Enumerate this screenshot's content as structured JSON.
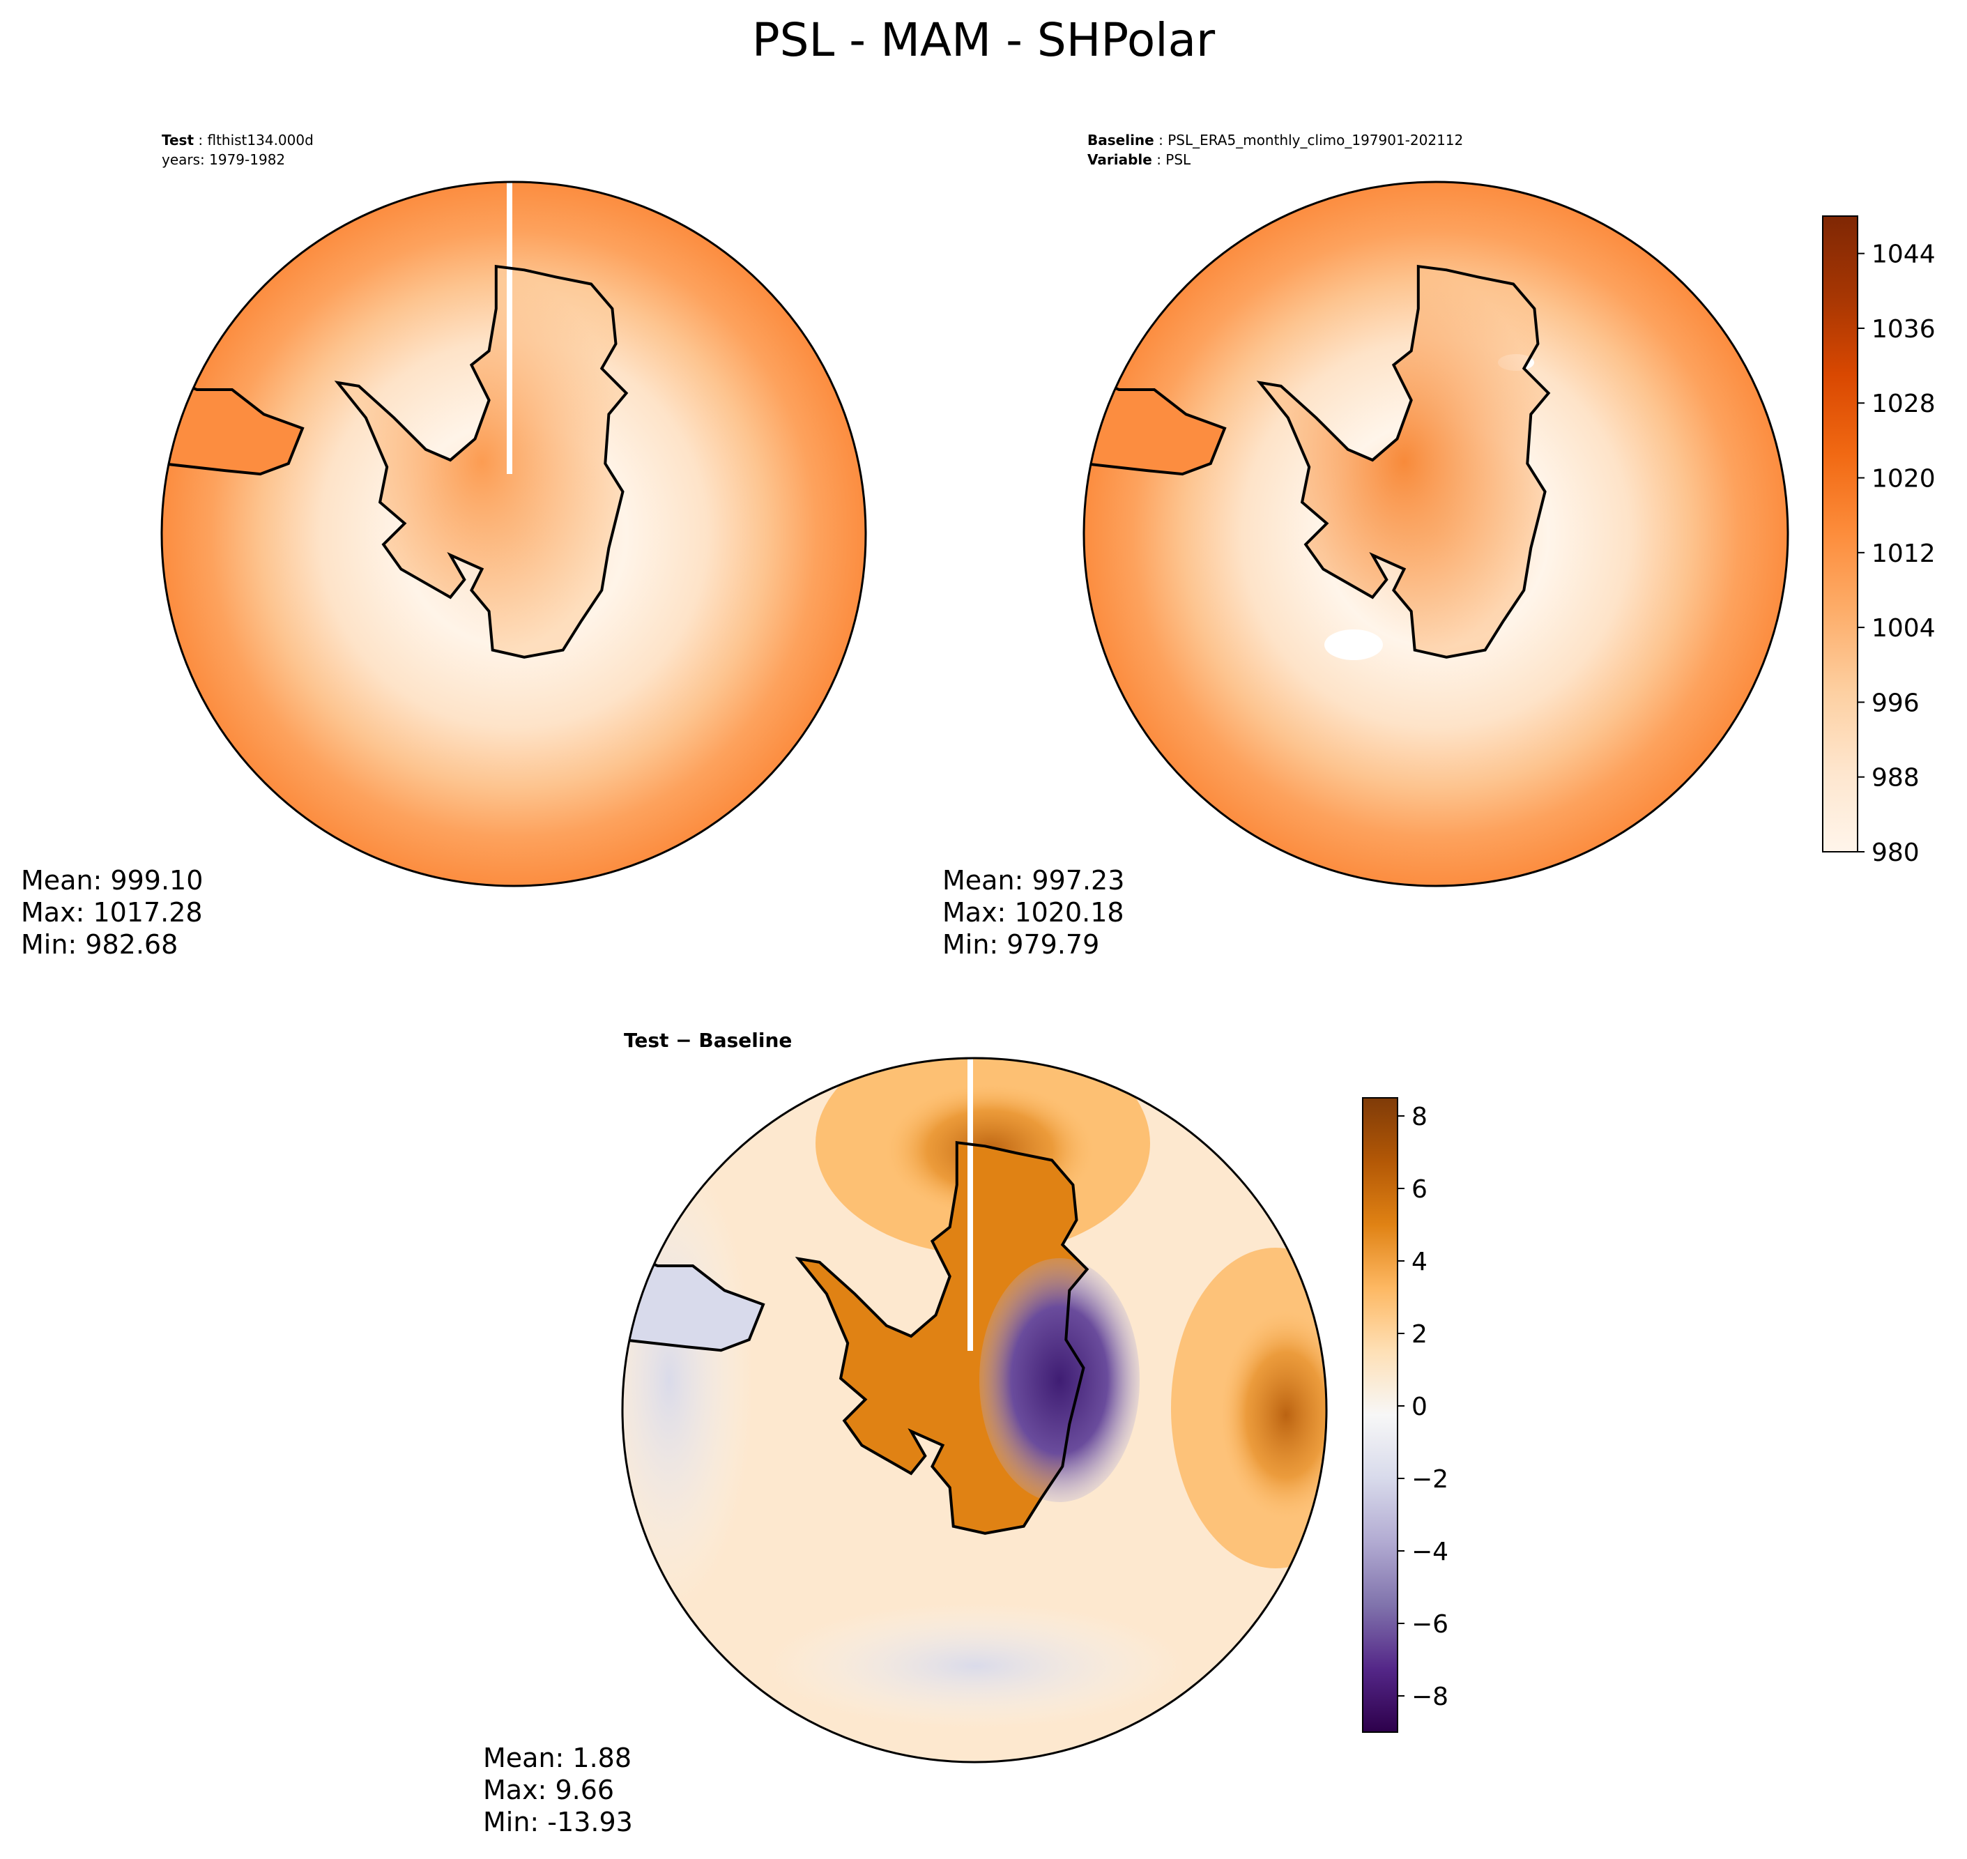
{
  "figure_title": "PSL - MAM - SHPolar",
  "panels": {
    "test": {
      "label_key": "Test",
      "label_value": "flthist134.000d",
      "line2": "years: 1979-1982",
      "stats": [
        "Mean: 999.10",
        "Max: 1017.28",
        "Min: 982.68"
      ]
    },
    "baseline": {
      "label_key": "Baseline",
      "label_value": "PSL_ERA5_monthly_climo_197901-202112",
      "line2_key": "Variable",
      "line2_value": "PSL",
      "stats": [
        "Mean: 997.23",
        "Max: 1020.18",
        "Min: 979.79"
      ]
    },
    "diff": {
      "label": "Test − Baseline",
      "stats": [
        "Mean:  1.88",
        "Max:  9.66",
        "Min: -13.93"
      ]
    }
  },
  "chart_data": [
    {
      "type": "heatmap",
      "name": "Test",
      "projection": "south-polar-stereographic",
      "stats": {
        "mean": 999.1,
        "max": 1017.28,
        "min": 982.68
      },
      "colorbar": "shared-absolute"
    },
    {
      "type": "heatmap",
      "name": "Baseline",
      "projection": "south-polar-stereographic",
      "stats": {
        "mean": 997.23,
        "max": 1020.18,
        "min": 979.79
      },
      "colorbar": "shared-absolute"
    },
    {
      "type": "heatmap",
      "name": "Test − Baseline",
      "projection": "south-polar-stereographic",
      "stats": {
        "mean": 1.88,
        "max": 9.66,
        "min": -13.93
      },
      "colorbar": "difference"
    }
  ],
  "colorbars": {
    "absolute": {
      "colormap": "Oranges",
      "range": [
        980,
        1048
      ],
      "ticks": [
        980,
        988,
        996,
        1004,
        1012,
        1020,
        1028,
        1036,
        1044
      ],
      "colors": [
        "#fff5eb",
        "#fee6ce",
        "#fdd0a2",
        "#fdae6b",
        "#fd8d3c",
        "#f16913",
        "#d94801",
        "#a63603",
        "#7f2704"
      ]
    },
    "difference": {
      "colormap": "PuOr_r",
      "range": [
        -9,
        8.5
      ],
      "ticks": [
        -8,
        -6,
        -4,
        -2,
        0,
        2,
        4,
        6,
        8
      ],
      "tick_labels": [
        "−8",
        "−6",
        "−4",
        "−2",
        "0",
        "2",
        "4",
        "6",
        "8"
      ],
      "colors": [
        "#2d004b",
        "#542788",
        "#8073ac",
        "#b2abd2",
        "#d8daeb",
        "#f7f7f7",
        "#fee0b6",
        "#fdb863",
        "#e08214",
        "#b35806",
        "#7f3b08"
      ]
    }
  }
}
